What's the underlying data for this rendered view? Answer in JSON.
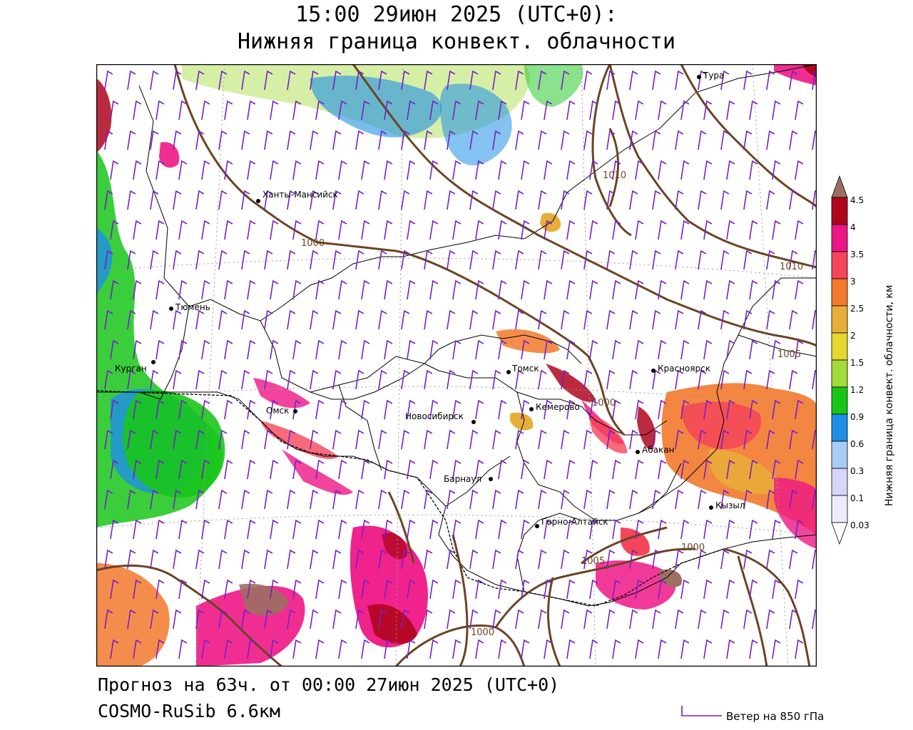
{
  "header": {
    "title_line1": "15:00 29июн 2025 (UTC+0):",
    "title_line2": "Нижняя граница конвект. облачности"
  },
  "footer": {
    "forecast": "Прогноз на 63ч. от 00:00 27июн 2025 (UTC+0)",
    "model": "COSMO-RuSib 6.6км",
    "wind_key": "Ветер на 850 гПа"
  },
  "legend": {
    "title": "Нижняя граница конвект. облачности, км",
    "values": [
      "4.5",
      "4",
      "3.5",
      "3",
      "2.5",
      "2",
      "1.5",
      "1.2",
      "0.9",
      "0.6",
      "0.3",
      "0.1",
      "0.03"
    ],
    "colors": [
      "#9b7062",
      "#b0051d",
      "#ee1785",
      "#f5455a",
      "#f2792b",
      "#e7ae39",
      "#e7d731",
      "#a3dc3a",
      "#18c61a",
      "#1e8fe6",
      "#a8cdf5",
      "#d6d6f7",
      "#ececfa"
    ]
  },
  "cities": [
    {
      "name": "Тура"
    },
    {
      "name": "Ханты-Мансийск"
    },
    {
      "name": "Тюмень"
    },
    {
      "name": "Курган"
    },
    {
      "name": "Омск"
    },
    {
      "name": "Новосибирск"
    },
    {
      "name": "Томск"
    },
    {
      "name": "Кемерово"
    },
    {
      "name": "Красноярск"
    },
    {
      "name": "Абакан"
    },
    {
      "name": "Барнаул"
    },
    {
      "name": "Горно-Алтайск"
    },
    {
      "name": "Кызыл"
    }
  ],
  "isobar_labels": [
    "1010",
    "1000",
    "1010",
    "1005",
    "1000",
    "1000",
    "1005",
    "1000"
  ],
  "colors": {
    "isobar": "#6b4423",
    "border": "#000000",
    "wind_barb": "#7a1fc4",
    "grid": "#9a9a9a"
  }
}
